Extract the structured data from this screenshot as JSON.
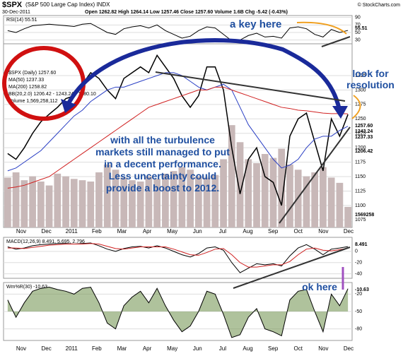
{
  "header": {
    "symbol": "$SPX",
    "name": "(S&P 500 Large Cap Index) INDX",
    "date": "30-Dec-2011",
    "quote": "Open 1262.82  High 1264.14  Low 1257.46  Close 1257.60  Volume 1.6B  Chg -5.42 (-0.43%)",
    "credit": "© StockCharts.com"
  },
  "x_labels": [
    "Nov",
    "Dec",
    "2011",
    "Feb",
    "Mar",
    "Apr",
    "May",
    "Jun",
    "Jul",
    "Aug",
    "Sep",
    "Oct",
    "Nov",
    "Dec"
  ],
  "annotations": {
    "key": "a key here",
    "resolution": "look for resolution",
    "note": "with all the turbulence markets still managed to put in a decent performance. Less uncertainty could provide a boost to 2012.",
    "ok": "ok here"
  },
  "chart_data": [
    {
      "type": "line",
      "title": "RSI(14) 55.51",
      "ylim": [
        20,
        95
      ],
      "yticks": [
        30,
        50,
        70,
        90
      ],
      "last_label": "55.51",
      "series": [
        {
          "color": "#000000",
          "values": [
            55,
            50,
            60,
            68,
            70,
            72,
            70,
            68,
            66,
            72,
            74,
            62,
            50,
            45,
            60,
            65,
            68,
            62,
            70,
            55,
            45,
            35,
            40,
            55,
            65,
            62,
            45,
            28,
            30,
            42,
            48,
            38,
            40,
            35,
            62,
            65,
            60,
            45,
            38,
            58,
            50,
            55.51
          ]
        }
      ]
    },
    {
      "type": "line",
      "ylim": [
        1062,
        1380
      ],
      "yticks": [
        1075,
        1100,
        1125,
        1150,
        1175,
        1200,
        1225,
        1250,
        1275,
        1300,
        1325
      ],
      "legend": [
        "$SPX (Daily) 1257.60",
        "MA(50) 1237.33",
        "MA(200) 1258.82",
        "BB(20,2.0) 1206.42 - 1243.24 - 1280.10",
        "Volume 1,569,258,112"
      ],
      "right_labels": [
        "1257.60",
        "1243.24",
        "1237.33",
        "1206.42",
        "1569258"
      ],
      "vlim": [
        0,
        14000000
      ],
      "volume": [
        3800000,
        4200000,
        3600000,
        3900000,
        3500000,
        3200000,
        4100000,
        3900000,
        3700000,
        3600000,
        3500000,
        4200000,
        4800000,
        4400000,
        3800000,
        3600000,
        3500000,
        3900000,
        3700000,
        4100000,
        4300000,
        4600000,
        4400000,
        3900000,
        3800000,
        4000000,
        5200000,
        7800000,
        6500000,
        5200000,
        4900000,
        5600000,
        5300000,
        6000000,
        4800000,
        4400000,
        3900000,
        4200000,
        4600000,
        3800000,
        3400000,
        1569258
      ],
      "series": [
        {
          "color": "#000000",
          "values": [
            1190,
            1180,
            1200,
            1225,
            1245,
            1258,
            1270,
            1285,
            1290,
            1310,
            1330,
            1320,
            1300,
            1285,
            1320,
            1330,
            1340,
            1330,
            1360,
            1340,
            1320,
            1290,
            1270,
            1290,
            1340,
            1340,
            1300,
            1200,
            1120,
            1180,
            1200,
            1150,
            1140,
            1100,
            1220,
            1250,
            1260,
            1210,
            1160,
            1250,
            1220,
            1257.6
          ]
        },
        {
          "color": "#2a3fc4",
          "values": [
            1160,
            1165,
            1175,
            1185,
            1195,
            1210,
            1225,
            1240,
            1255,
            1265,
            1280,
            1290,
            1300,
            1305,
            1305,
            1310,
            1315,
            1320,
            1325,
            1330,
            1330,
            1325,
            1315,
            1305,
            1300,
            1305,
            1310,
            1300,
            1270,
            1240,
            1220,
            1200,
            1180,
            1165,
            1170,
            1180,
            1200,
            1215,
            1220,
            1220,
            1230,
            1237.33
          ]
        },
        {
          "color": "#d02020",
          "values": [
            1130,
            1132,
            1135,
            1140,
            1145,
            1150,
            1160,
            1170,
            1180,
            1190,
            1200,
            1210,
            1220,
            1230,
            1240,
            1250,
            1260,
            1270,
            1275,
            1280,
            1285,
            1290,
            1295,
            1300,
            1300,
            1305,
            1305,
            1300,
            1295,
            1290,
            1285,
            1280,
            1275,
            1270,
            1268,
            1265,
            1264,
            1262,
            1260,
            1259,
            1259,
            1258.82
          ]
        }
      ]
    },
    {
      "type": "line",
      "title": "MACD(12,26,9) 8.491, 5.695, 2.796",
      "ylim": [
        -48,
        25
      ],
      "yticks": [
        -40,
        -20,
        0
      ],
      "last_label": "8.491",
      "series": [
        {
          "color": "#000000",
          "values": [
            8,
            4,
            6,
            10,
            12,
            13,
            14,
            14,
            13,
            14,
            15,
            10,
            4,
            0,
            5,
            8,
            9,
            6,
            10,
            6,
            0,
            -6,
            -10,
            -4,
            6,
            8,
            2,
            -20,
            -38,
            -30,
            -22,
            -24,
            -22,
            -26,
            -8,
            6,
            12,
            4,
            -6,
            4,
            6,
            8.491
          ]
        },
        {
          "color": "#d02020",
          "values": [
            6,
            6,
            5,
            7,
            9,
            11,
            12,
            13,
            13,
            13,
            14,
            13,
            9,
            5,
            4,
            6,
            8,
            8,
            8,
            8,
            4,
            -1,
            -6,
            -7,
            -2,
            4,
            5,
            -6,
            -20,
            -28,
            -28,
            -26,
            -24,
            -24,
            -18,
            -6,
            4,
            6,
            2,
            1,
            3,
            5.695
          ]
        }
      ]
    },
    {
      "type": "line",
      "title": "Wm%R(30) -10.63",
      "ylim": [
        -100,
        0
      ],
      "yticks": [
        -80,
        -50,
        -20
      ],
      "last_label": "-10.63",
      "series": [
        {
          "color": "#000000",
          "values": [
            -30,
            -60,
            -35,
            -15,
            -10,
            -8,
            -12,
            -15,
            -20,
            -10,
            -8,
            -35,
            -70,
            -80,
            -40,
            -25,
            -15,
            -35,
            -10,
            -40,
            -65,
            -85,
            -75,
            -50,
            -15,
            -20,
            -55,
            -95,
            -90,
            -60,
            -45,
            -80,
            -85,
            -92,
            -30,
            -15,
            -12,
            -50,
            -85,
            -20,
            -40,
            -10.63
          ]
        }
      ]
    }
  ]
}
